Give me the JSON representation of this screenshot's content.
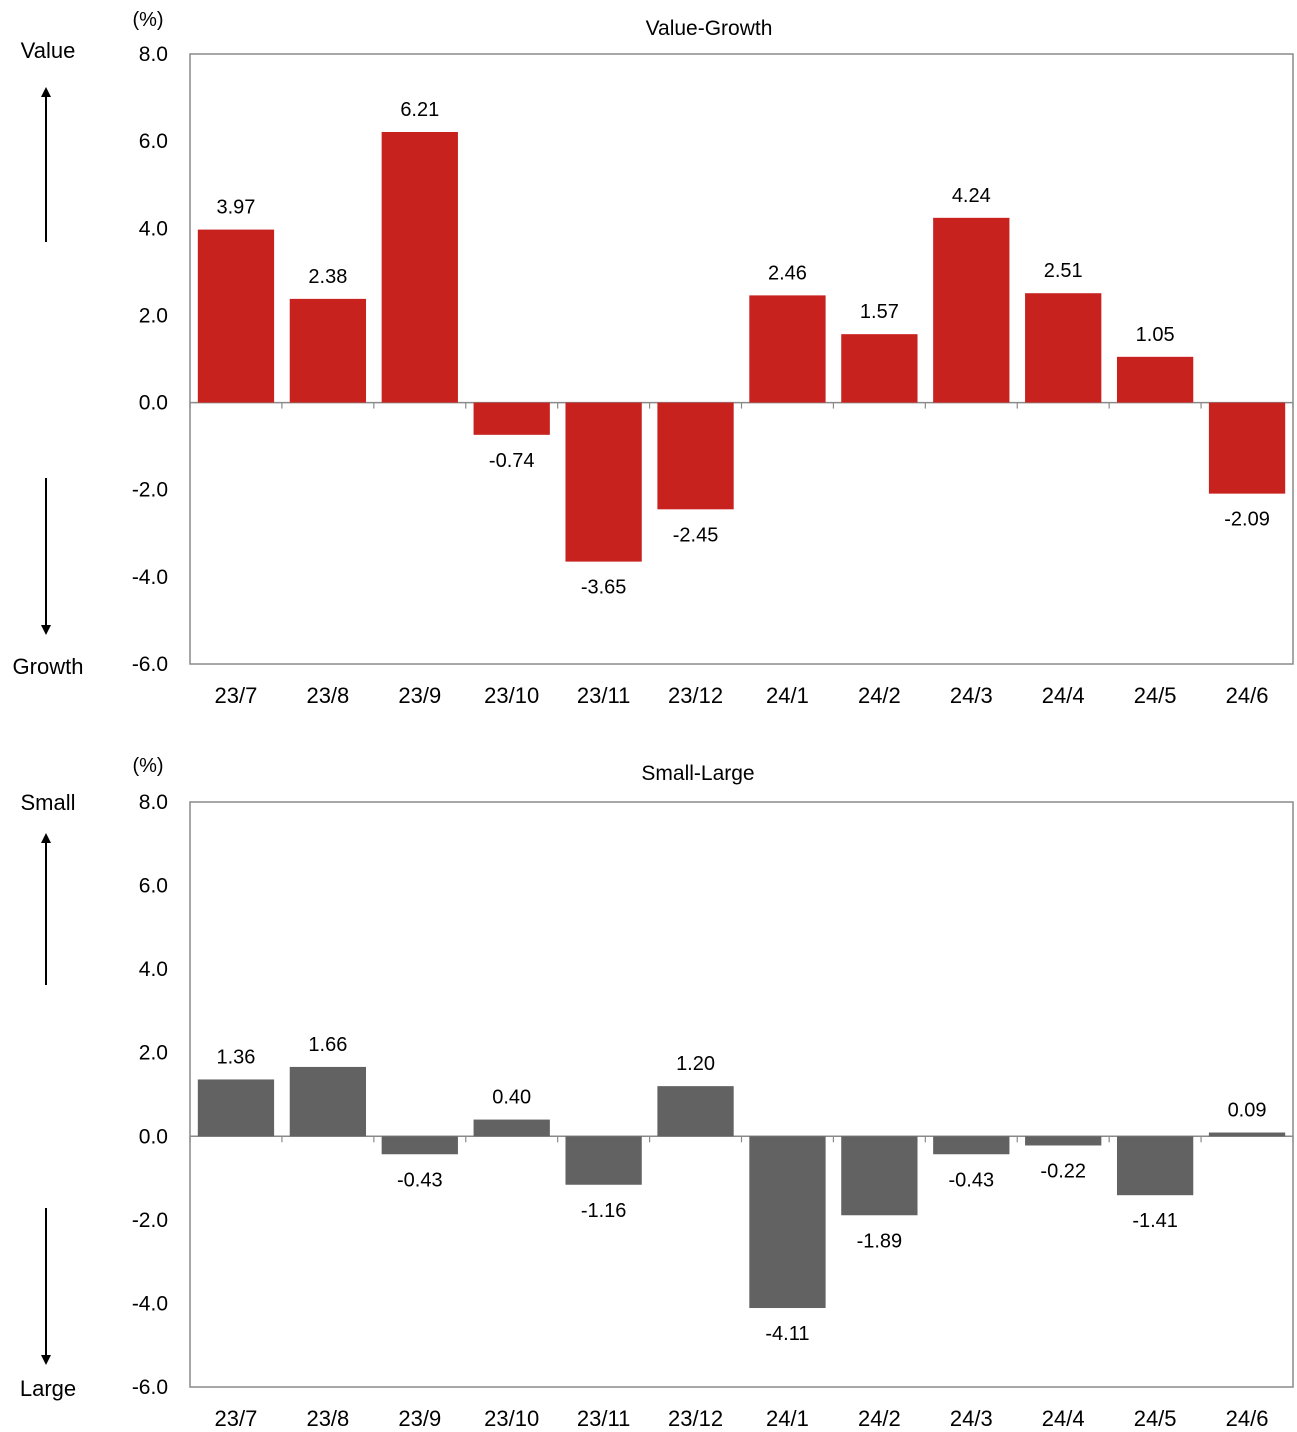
{
  "chart_data": [
    {
      "type": "bar",
      "title": "Value-Growth",
      "unit": "(%)",
      "top_label": "Value",
      "bottom_label": "Growth",
      "categories": [
        "23/7",
        "23/8",
        "23/9",
        "23/10",
        "23/11",
        "23/12",
        "24/1",
        "24/2",
        "24/3",
        "24/4",
        "24/5",
        "24/6"
      ],
      "values": [
        3.97,
        2.38,
        6.21,
        -0.74,
        -3.65,
        -2.45,
        2.46,
        1.57,
        4.24,
        2.51,
        1.05,
        -2.09
      ],
      "data_labels": [
        "3.97",
        "2.38",
        "6.21",
        "-0.74",
        "-3.65",
        "-2.45",
        "2.46",
        "1.57",
        "4.24",
        "2.51",
        "1.05",
        "-2.09"
      ],
      "ylim": [
        -6,
        8
      ],
      "yticks": [
        "8.0",
        "6.0",
        "4.0",
        "2.0",
        "0.0",
        "-2.0",
        "-4.0",
        "-6.0"
      ],
      "grid": false,
      "bar_color": "#c8221f"
    },
    {
      "type": "bar",
      "title": "Small-Large",
      "unit": "(%)",
      "top_label": "Small",
      "bottom_label": "Large",
      "categories": [
        "23/7",
        "23/8",
        "23/9",
        "23/10",
        "23/11",
        "23/12",
        "24/1",
        "24/2",
        "24/3",
        "24/4",
        "24/5",
        "24/6"
      ],
      "values": [
        1.36,
        1.66,
        -0.43,
        0.4,
        -1.16,
        1.2,
        -4.11,
        -1.89,
        -0.43,
        -0.22,
        -1.41,
        0.09
      ],
      "data_labels": [
        "1.36",
        "1.66",
        "-0.43",
        "0.40",
        "-1.16",
        "1.20",
        "-4.11",
        "-1.89",
        "-0.43",
        "-0.22",
        "-1.41",
        "0.09"
      ],
      "ylim": [
        -6,
        8
      ],
      "yticks": [
        "8.0",
        "6.0",
        "4.0",
        "2.0",
        "0.0",
        "-2.0",
        "-4.0",
        "-6.0"
      ],
      "grid": false,
      "bar_color": "#626262"
    }
  ]
}
